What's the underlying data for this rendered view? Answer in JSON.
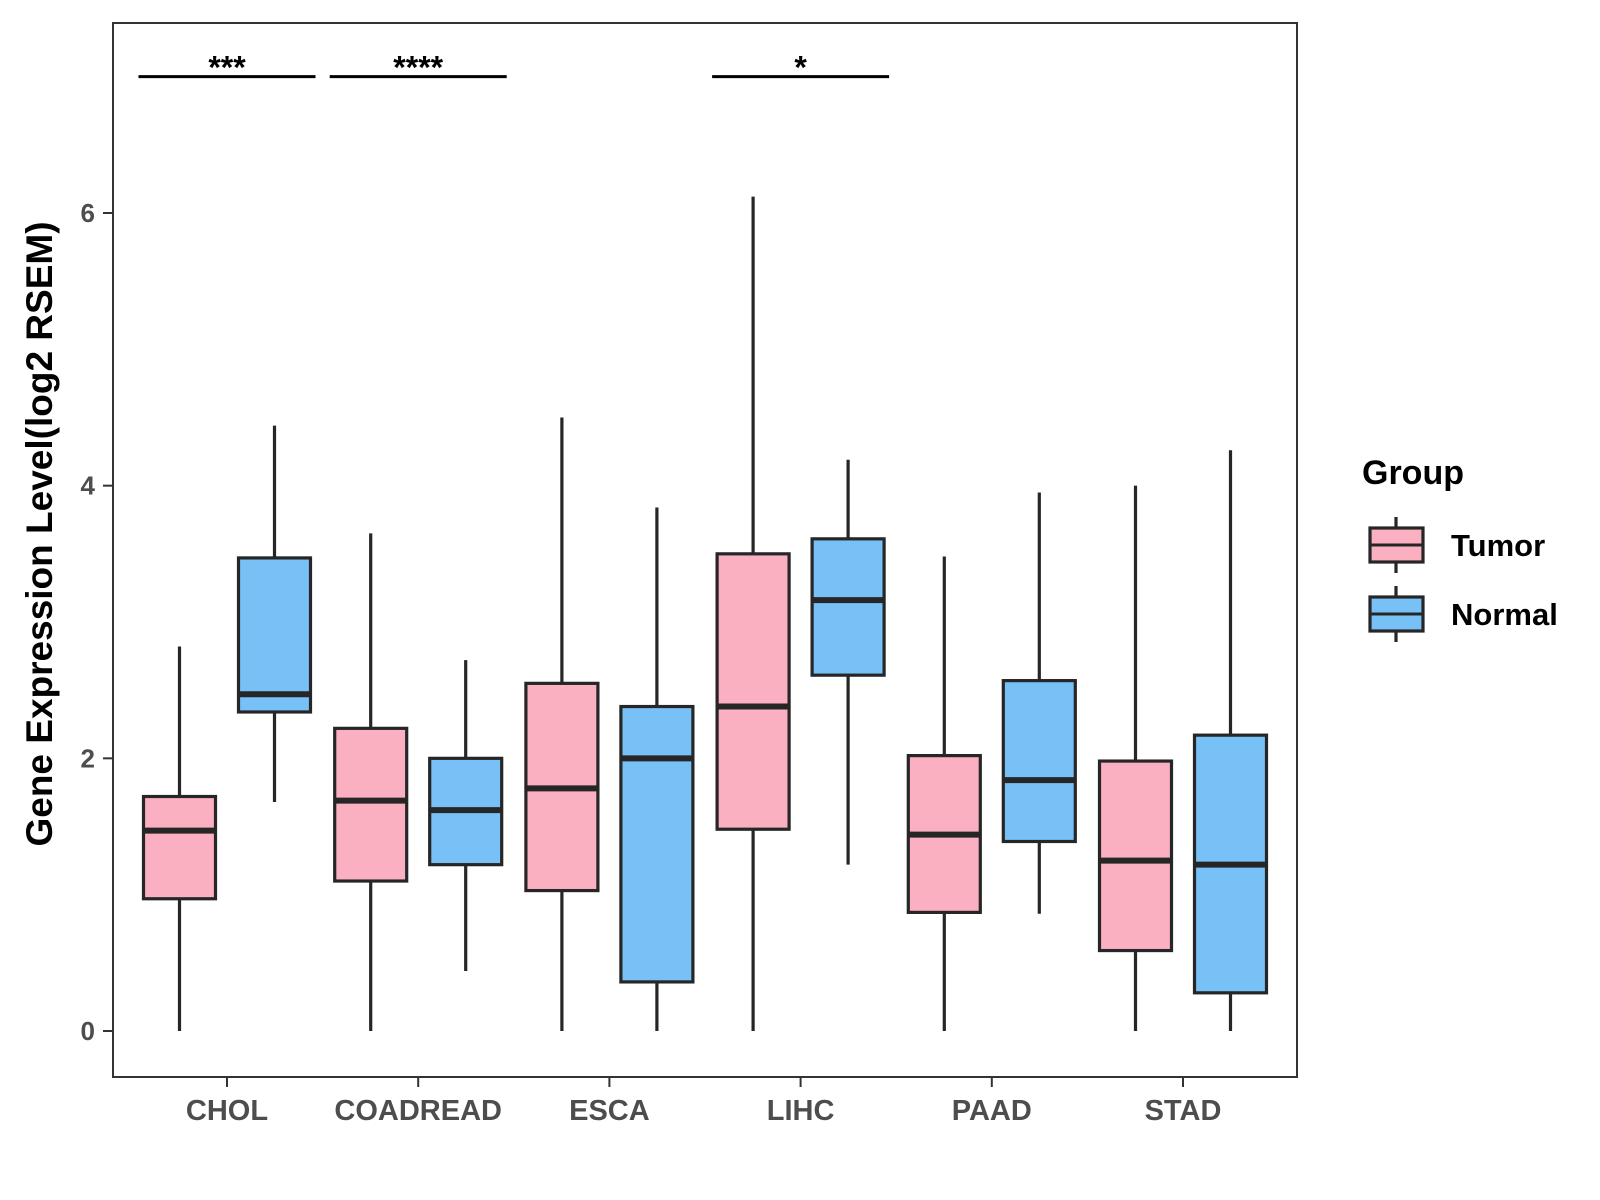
{
  "chart_data": {
    "type": "boxplot",
    "title": "",
    "xlabel": "",
    "ylabel": "Gene Expression Level(log2 RSEM)",
    "ylim": [
      -0.35,
      7.4
    ],
    "yticks": [
      0,
      2,
      4,
      6
    ],
    "grid": false,
    "categories": [
      "CHOL",
      "COADREAD",
      "ESCA",
      "LIHC",
      "PAAD",
      "STAD"
    ],
    "legend": {
      "title": "Group",
      "position": "right",
      "entries": [
        {
          "name": "Tumor",
          "color": "#FBB0C1"
        },
        {
          "name": "Normal",
          "color": "#78C1F7"
        }
      ]
    },
    "series": [
      {
        "name": "Tumor",
        "color": "#FBB0C1",
        "boxes": [
          {
            "category": "CHOL",
            "min": 0.0,
            "q1": 0.97,
            "median": 1.47,
            "q3": 1.72,
            "max": 2.82
          },
          {
            "category": "COADREAD",
            "min": 0.0,
            "q1": 1.1,
            "median": 1.69,
            "q3": 2.22,
            "max": 3.65
          },
          {
            "category": "ESCA",
            "min": 0.0,
            "q1": 1.03,
            "median": 1.78,
            "q3": 2.55,
            "max": 4.5
          },
          {
            "category": "LIHC",
            "min": 0.0,
            "q1": 1.48,
            "median": 2.38,
            "q3": 3.5,
            "max": 6.12
          },
          {
            "category": "PAAD",
            "min": 0.0,
            "q1": 0.87,
            "median": 1.44,
            "q3": 2.02,
            "max": 3.48
          },
          {
            "category": "STAD",
            "min": 0.0,
            "q1": 0.59,
            "median": 1.25,
            "q3": 1.98,
            "max": 4.0
          }
        ]
      },
      {
        "name": "Normal",
        "color": "#78C1F7",
        "boxes": [
          {
            "category": "CHOL",
            "min": 1.68,
            "q1": 2.34,
            "median": 2.47,
            "q3": 3.47,
            "max": 4.44
          },
          {
            "category": "COADREAD",
            "min": 0.44,
            "q1": 1.22,
            "median": 1.62,
            "q3": 2.0,
            "max": 2.72
          },
          {
            "category": "ESCA",
            "min": 0.0,
            "q1": 0.36,
            "median": 2.0,
            "q3": 2.38,
            "max": 3.84
          },
          {
            "category": "LIHC",
            "min": 1.22,
            "q1": 2.61,
            "median": 3.16,
            "q3": 3.61,
            "max": 4.19
          },
          {
            "category": "PAAD",
            "min": 0.86,
            "q1": 1.39,
            "median": 1.84,
            "q3": 2.57,
            "max": 3.95
          },
          {
            "category": "STAD",
            "min": 0.0,
            "q1": 0.28,
            "median": 1.22,
            "q3": 2.17,
            "max": 4.26
          }
        ]
      }
    ],
    "significance": [
      {
        "category": "CHOL",
        "label": "***",
        "y": 7.0
      },
      {
        "category": "COADREAD",
        "label": "****",
        "y": 7.0
      },
      {
        "category": "LIHC",
        "label": "*",
        "y": 7.0
      }
    ]
  }
}
